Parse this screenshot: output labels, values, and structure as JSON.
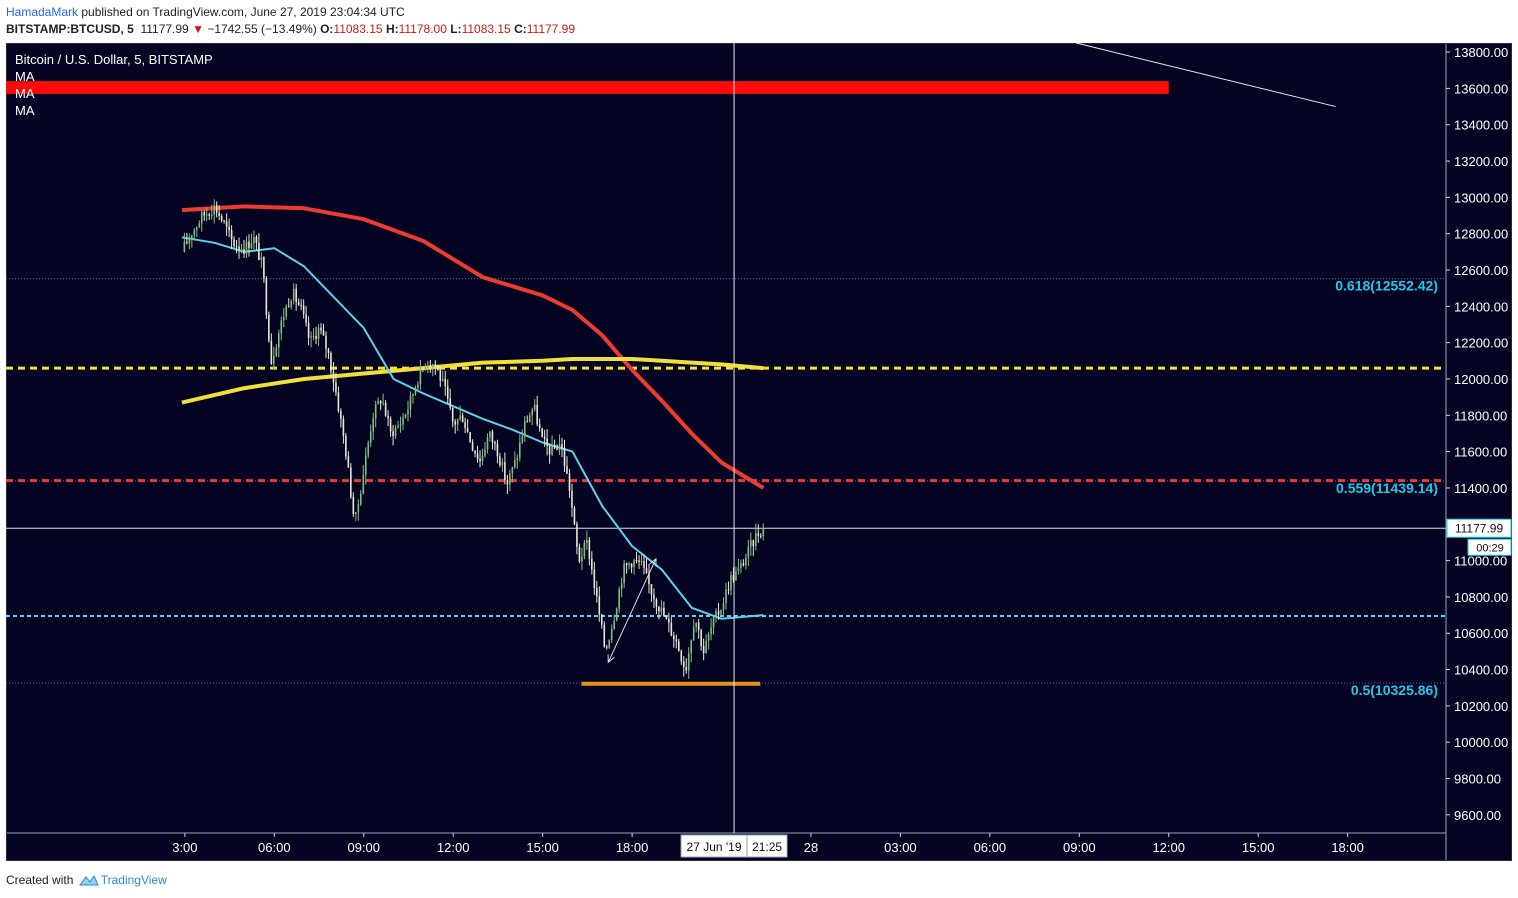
{
  "header": {
    "author": "HamadaMark",
    "published": " published on TradingView.com, June 27, 2019 23:04:34 UTC",
    "symbol": "BITSTAMP:BTCUSD, 5",
    "last": "11177.99",
    "change": "−1742.55 (−13.49%)",
    "o_label": "O:",
    "o": "11083.15",
    "h_label": "H:",
    "h": "11178.00",
    "l_label": "L:",
    "l": "11083.15",
    "c_label": "C:",
    "c": "11177.99"
  },
  "legend": {
    "title": "Bitcoin / U.S. Dollar, 5, BITSTAMP",
    "ma": [
      "MA",
      "MA",
      "MA"
    ]
  },
  "price_badge": "11177.99",
  "countdown_badge": "00:29",
  "crosshair_date": "27 Jun '19",
  "crosshair_time": "21:25",
  "footer": {
    "created_with": "Created with",
    "brand": "TradingView"
  },
  "colors": {
    "background": "#040422",
    "grid_line": "#3f6fb0",
    "red_band": "#ff0a0a",
    "ma_red": "#ee3a33",
    "ma_yellow": "#f0e03a",
    "ma_cyan": "#5ad2ec",
    "fib_text": "#1fc9e8",
    "support": "#e39018",
    "candle_up": "#7fbf7f",
    "candle_down": "#eae6d0"
  },
  "chart_data": {
    "type": "candlestick",
    "y_axis": {
      "range": [
        9500,
        13850
      ],
      "ticks": [
        13800,
        13600,
        13400,
        13200,
        13000,
        12800,
        12600,
        12400,
        12200,
        12000,
        11800,
        11600,
        11400,
        11200,
        11000,
        10800,
        10600,
        10400,
        10200,
        10000,
        9800,
        9600
      ],
      "tick_labels": [
        "13800.00",
        "13600.00",
        "13400.00",
        "13200.00",
        "13000.00",
        "12800.00",
        "12600.00",
        "12400.00",
        "12200.00",
        "12000.00",
        "11800.00",
        "11600.00",
        "11400.00",
        "11200.00",
        "11000.00",
        "10800.00",
        "10600.00",
        "10400.00",
        "10200.00",
        "10000.00",
        "9800.00",
        "9600.00"
      ]
    },
    "x_axis": {
      "range_hours": [
        -3,
        45.3
      ],
      "ticks": [
        {
          "label": "3:00",
          "hour": 3
        },
        {
          "label": "06:00",
          "hour": 6
        },
        {
          "label": "09:00",
          "hour": 9
        },
        {
          "label": "12:00",
          "hour": 12
        },
        {
          "label": "15:00",
          "hour": 15
        },
        {
          "label": "18:00",
          "hour": 18
        },
        {
          "label": "28",
          "hour": 24
        },
        {
          "label": "03:00",
          "hour": 27
        },
        {
          "label": "06:00",
          "hour": 30
        },
        {
          "label": "09:00",
          "hour": 33
        },
        {
          "label": "12:00",
          "hour": 36
        },
        {
          "label": "15:00",
          "hour": 39
        },
        {
          "label": "18:00",
          "hour": 42
        }
      ]
    },
    "last_price": 11177.99,
    "crosshair_hour": 21.42,
    "fib_levels": [
      {
        "ratio": "0.618",
        "value": 12552.42,
        "label": "0.618(12552.42)"
      },
      {
        "ratio": "0.559",
        "value": 11439.14,
        "label": "0.559(11439.14)"
      },
      {
        "ratio": "0.5",
        "value": 10325.86,
        "label": "0.5(10325.86)"
      }
    ],
    "horizontal_levels": [
      {
        "value": 12060,
        "style": "dashed",
        "color": "#f0e03a"
      },
      {
        "value": 11440,
        "style": "dashed",
        "color": "#ee3a33"
      },
      {
        "value": 10695,
        "style": "dashed",
        "color": "#5ad2ec"
      }
    ],
    "red_band": {
      "from": 13570,
      "to": 13640,
      "x_end_hour": 36
    },
    "support_line": {
      "value": 10322,
      "from_hour": 16.3,
      "to_hour": 22.3
    },
    "trend_line": {
      "from": [
        32.9,
        13850
      ],
      "to": [
        41.6,
        13500
      ]
    },
    "arrow": {
      "from": [
        17.2,
        10440
      ],
      "to": [
        18.8,
        11010
      ]
    },
    "ma_red": {
      "x": [
        2.9,
        5,
        7,
        9,
        11,
        13,
        15,
        16,
        17,
        18,
        19,
        20,
        21,
        22.4
      ],
      "y": [
        12930,
        12950,
        12940,
        12880,
        12760,
        12560,
        12460,
        12380,
        12240,
        12050,
        11880,
        11700,
        11540,
        11400
      ]
    },
    "ma_yellow": {
      "x": [
        2.9,
        5,
        7,
        9,
        11,
        13,
        15,
        16,
        17,
        18,
        19,
        20,
        21,
        22.4
      ],
      "y": [
        11870,
        11950,
        12000,
        12030,
        12060,
        12090,
        12100,
        12110,
        12110,
        12110,
        12100,
        12090,
        12080,
        12060
      ]
    },
    "ma_cyan": {
      "x": [
        2.9,
        4,
        5,
        6,
        7,
        8,
        9,
        10,
        11,
        12,
        13,
        14,
        15,
        16,
        17,
        18,
        19,
        20,
        21,
        22.4
      ],
      "y": [
        12780,
        12750,
        12700,
        12720,
        12620,
        12450,
        12280,
        12000,
        11920,
        11850,
        11780,
        11720,
        11650,
        11600,
        11300,
        11080,
        10950,
        10740,
        10680,
        10700
      ]
    },
    "price_path": {
      "hour": [
        2.9,
        3.2,
        3.6,
        4.0,
        4.3,
        4.6,
        5.0,
        5.3,
        5.6,
        5.9,
        6.3,
        6.6,
        6.9,
        7.2,
        7.5,
        7.8,
        8.1,
        8.4,
        8.7,
        9.0,
        9.3,
        9.6,
        9.9,
        10.2,
        10.5,
        10.8,
        11.1,
        11.4,
        11.7,
        12.0,
        12.3,
        12.6,
        12.9,
        13.2,
        13.5,
        13.8,
        14.1,
        14.4,
        14.7,
        15.0,
        15.3,
        15.6,
        15.9,
        16.2,
        16.5,
        16.8,
        17.1,
        17.4,
        17.7,
        18.0,
        18.3,
        18.6,
        18.9,
        19.2,
        19.5,
        19.8,
        20.1,
        20.4,
        20.7,
        21.0,
        21.3,
        21.6,
        21.9,
        22.2,
        22.4
      ],
      "price": [
        12700,
        12800,
        12900,
        12950,
        12860,
        12750,
        12720,
        12780,
        12620,
        12100,
        12350,
        12480,
        12380,
        12200,
        12280,
        12150,
        11900,
        11600,
        11200,
        11500,
        11800,
        11900,
        11700,
        11750,
        11850,
        12000,
        12100,
        12080,
        11950,
        11750,
        11800,
        11650,
        11550,
        11700,
        11600,
        11420,
        11550,
        11750,
        11850,
        11650,
        11600,
        11650,
        11400,
        11000,
        11100,
        10800,
        10500,
        10700,
        10950,
        11000,
        10980,
        10850,
        10750,
        10650,
        10550,
        10400,
        10700,
        10500,
        10650,
        10750,
        10900,
        10950,
        11050,
        11150,
        11178
      ]
    }
  }
}
